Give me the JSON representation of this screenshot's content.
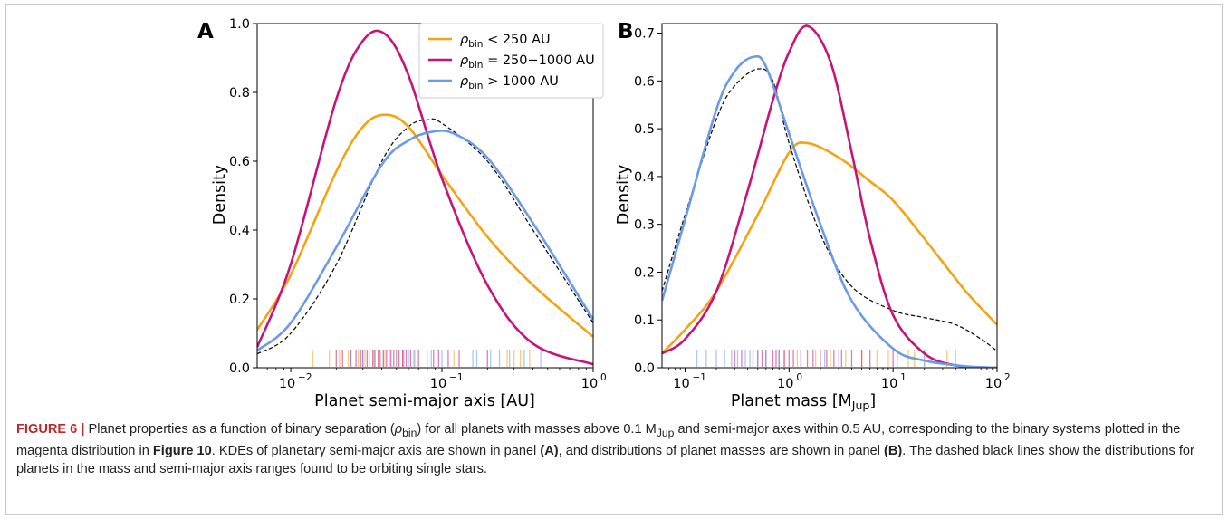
{
  "colors": {
    "lt250": "#f5a312",
    "mid": "#c8137a",
    "gt1000": "#6b9be6",
    "single": "#111111"
  },
  "panels": [
    {
      "letter": "A",
      "xlabel": "Planet semi-major axis [AU]",
      "ylabel": "Density",
      "xticks": [
        "10",
        "10",
        "10"
      ],
      "xtick_exps": [
        "−2",
        "−1",
        "0"
      ],
      "yticks": [
        "0.0",
        "0.2",
        "0.4",
        "0.6",
        "0.8",
        "1.0"
      ]
    },
    {
      "letter": "B",
      "xlabel": "Planet mass [M",
      "xlabel_sub": "Jup",
      "xlabel_end": "]",
      "ylabel": "Density",
      "xticks": [
        "10",
        "10",
        "10",
        "10"
      ],
      "xtick_exps": [
        "−1",
        "0",
        "1",
        "2"
      ],
      "yticks": [
        "0.0",
        "0.1",
        "0.2",
        "0.3",
        "0.4",
        "0.5",
        "0.6",
        "0.7"
      ]
    }
  ],
  "legend": [
    {
      "sym": "ρ",
      "sub": "bin",
      "rest": " < 250 AU"
    },
    {
      "sym": "ρ",
      "sub": "bin",
      "rest": " = 250−1000 AU"
    },
    {
      "sym": "ρ",
      "sub": "bin",
      "rest": " > 1000 AU"
    }
  ],
  "caption": {
    "label": "FIGURE 6 |",
    "t1": " Planet properties as a function of binary separation (",
    "rho": "ρ",
    "rho_sub": "bin",
    "t2": ") for all planets with masses above 0.1 M",
    "mjup_sub": "Jup",
    "t3": " and semi-major axes within 0.5 AU, corresponding to the binary systems plotted in the magenta distribution in ",
    "fig_ref": "Figure 10",
    "t4": ". KDEs of planetary semi-major axis are shown in panel ",
    "pa": "(A)",
    "t5": ", and distributions of planet masses are shown in panel ",
    "pb": "(B)",
    "t6": ". The dashed black lines show the distributions for planets in the mass and semi-major axis ranges found to be orbiting single stars."
  },
  "chart_data": [
    {
      "type": "line",
      "panel": "A",
      "xlabel": "Planet semi-major axis [AU]",
      "ylabel": "Density",
      "xscale": "log",
      "xlim": [
        0.006,
        1.0
      ],
      "ylim": [
        0,
        1.0
      ],
      "legend_placement": "top-right",
      "series": [
        {
          "name": "ρbin < 250 AU",
          "color": "lt250",
          "x": [
            0.006,
            0.01,
            0.02,
            0.03,
            0.042,
            0.06,
            0.1,
            0.2,
            0.4,
            1.0
          ],
          "y": [
            0.11,
            0.27,
            0.57,
            0.7,
            0.735,
            0.7,
            0.56,
            0.38,
            0.24,
            0.09
          ]
        },
        {
          "name": "ρbin = 250−1000 AU",
          "color": "mid",
          "x": [
            0.006,
            0.01,
            0.02,
            0.03,
            0.042,
            0.06,
            0.1,
            0.2,
            0.4,
            1.0
          ],
          "y": [
            0.06,
            0.3,
            0.78,
            0.95,
            0.97,
            0.85,
            0.55,
            0.24,
            0.07,
            0.01
          ]
        },
        {
          "name": "ρbin > 1000 AU",
          "color": "gt1000",
          "x": [
            0.006,
            0.01,
            0.02,
            0.04,
            0.06,
            0.085,
            0.12,
            0.2,
            0.4,
            1.0
          ],
          "y": [
            0.05,
            0.13,
            0.35,
            0.59,
            0.66,
            0.685,
            0.68,
            0.61,
            0.42,
            0.14
          ]
        },
        {
          "name": "single stars",
          "color": "single",
          "dashed": true,
          "x": [
            0.006,
            0.01,
            0.02,
            0.04,
            0.06,
            0.08,
            0.1,
            0.2,
            0.4,
            1.0
          ],
          "y": [
            0.04,
            0.1,
            0.3,
            0.6,
            0.7,
            0.72,
            0.71,
            0.6,
            0.4,
            0.13
          ]
        }
      ],
      "rug": [
        {
          "color": "lt250",
          "x": [
            0.014,
            0.018,
            0.021,
            0.024,
            0.028,
            0.031,
            0.035,
            0.038,
            0.042,
            0.045,
            0.05,
            0.055,
            0.065,
            0.08,
            0.12,
            0.27,
            0.3,
            0.33,
            0.38
          ]
        },
        {
          "color": "mid",
          "x": [
            0.02,
            0.022,
            0.025,
            0.027,
            0.029,
            0.03,
            0.032,
            0.033,
            0.035,
            0.036,
            0.038,
            0.039,
            0.041,
            0.043,
            0.046,
            0.048,
            0.052,
            0.055,
            0.058,
            0.062,
            0.07,
            0.088,
            0.095,
            0.11,
            0.13,
            0.2
          ]
        },
        {
          "color": "gt1000",
          "x": [
            0.025,
            0.03,
            0.036,
            0.041,
            0.05,
            0.056,
            0.06,
            0.066,
            0.085,
            0.1,
            0.16,
            0.17,
            0.21,
            0.24,
            0.28,
            0.35,
            0.45
          ]
        }
      ]
    },
    {
      "type": "line",
      "panel": "B",
      "xlabel": "Planet mass [MJup]",
      "ylabel": "Density",
      "xscale": "log",
      "xlim": [
        0.06,
        100
      ],
      "ylim": [
        0,
        0.72
      ],
      "series": [
        {
          "name": "ρbin < 250 AU",
          "color": "lt250",
          "x": [
            0.06,
            0.1,
            0.2,
            0.5,
            1.0,
            1.5,
            3,
            6,
            10,
            20,
            50,
            100
          ],
          "y": [
            0.03,
            0.08,
            0.16,
            0.32,
            0.45,
            0.47,
            0.44,
            0.39,
            0.35,
            0.27,
            0.16,
            0.09
          ]
        },
        {
          "name": "ρbin = 250−1000 AU",
          "color": "mid",
          "x": [
            0.06,
            0.1,
            0.2,
            0.4,
            0.7,
            1.0,
            1.5,
            2.5,
            4,
            6,
            10,
            20,
            40,
            100
          ],
          "y": [
            0.03,
            0.06,
            0.16,
            0.37,
            0.56,
            0.66,
            0.715,
            0.64,
            0.45,
            0.27,
            0.11,
            0.03,
            0.005,
            0.0
          ]
        },
        {
          "name": "ρbin > 1000 AU",
          "color": "gt1000",
          "x": [
            0.06,
            0.1,
            0.2,
            0.3,
            0.45,
            0.6,
            1.0,
            2,
            4,
            10,
            20,
            50,
            100
          ],
          "y": [
            0.14,
            0.31,
            0.54,
            0.62,
            0.65,
            0.63,
            0.49,
            0.3,
            0.14,
            0.04,
            0.015,
            0.003,
            0.0
          ]
        },
        {
          "name": "single stars",
          "color": "single",
          "dashed": true,
          "x": [
            0.06,
            0.1,
            0.2,
            0.3,
            0.5,
            0.7,
            1.0,
            2,
            4,
            10,
            20,
            40,
            70,
            100
          ],
          "y": [
            0.16,
            0.32,
            0.52,
            0.59,
            0.625,
            0.6,
            0.47,
            0.28,
            0.17,
            0.12,
            0.105,
            0.09,
            0.06,
            0.035
          ]
        }
      ],
      "rug": [
        {
          "color": "lt250",
          "x": [
            0.9,
            1.2,
            1.8,
            2.5,
            3.5,
            5,
            7,
            9,
            11,
            14,
            16,
            20,
            33,
            40
          ]
        },
        {
          "color": "mid",
          "x": [
            0.3,
            0.35,
            0.45,
            0.5,
            0.55,
            0.6,
            0.7,
            0.75,
            0.8,
            0.9,
            1.0,
            1.1,
            1.3,
            1.5,
            1.7,
            2.0,
            2.3,
            2.7,
            3.2,
            4.0,
            5.0,
            6.0,
            10
          ]
        },
        {
          "color": "gt1000",
          "x": [
            0.13,
            0.16,
            0.2,
            0.24,
            0.28,
            0.32,
            0.38,
            0.42,
            0.5,
            0.6,
            0.8,
            1.3,
            2.2,
            3,
            20
          ]
        }
      ]
    }
  ]
}
